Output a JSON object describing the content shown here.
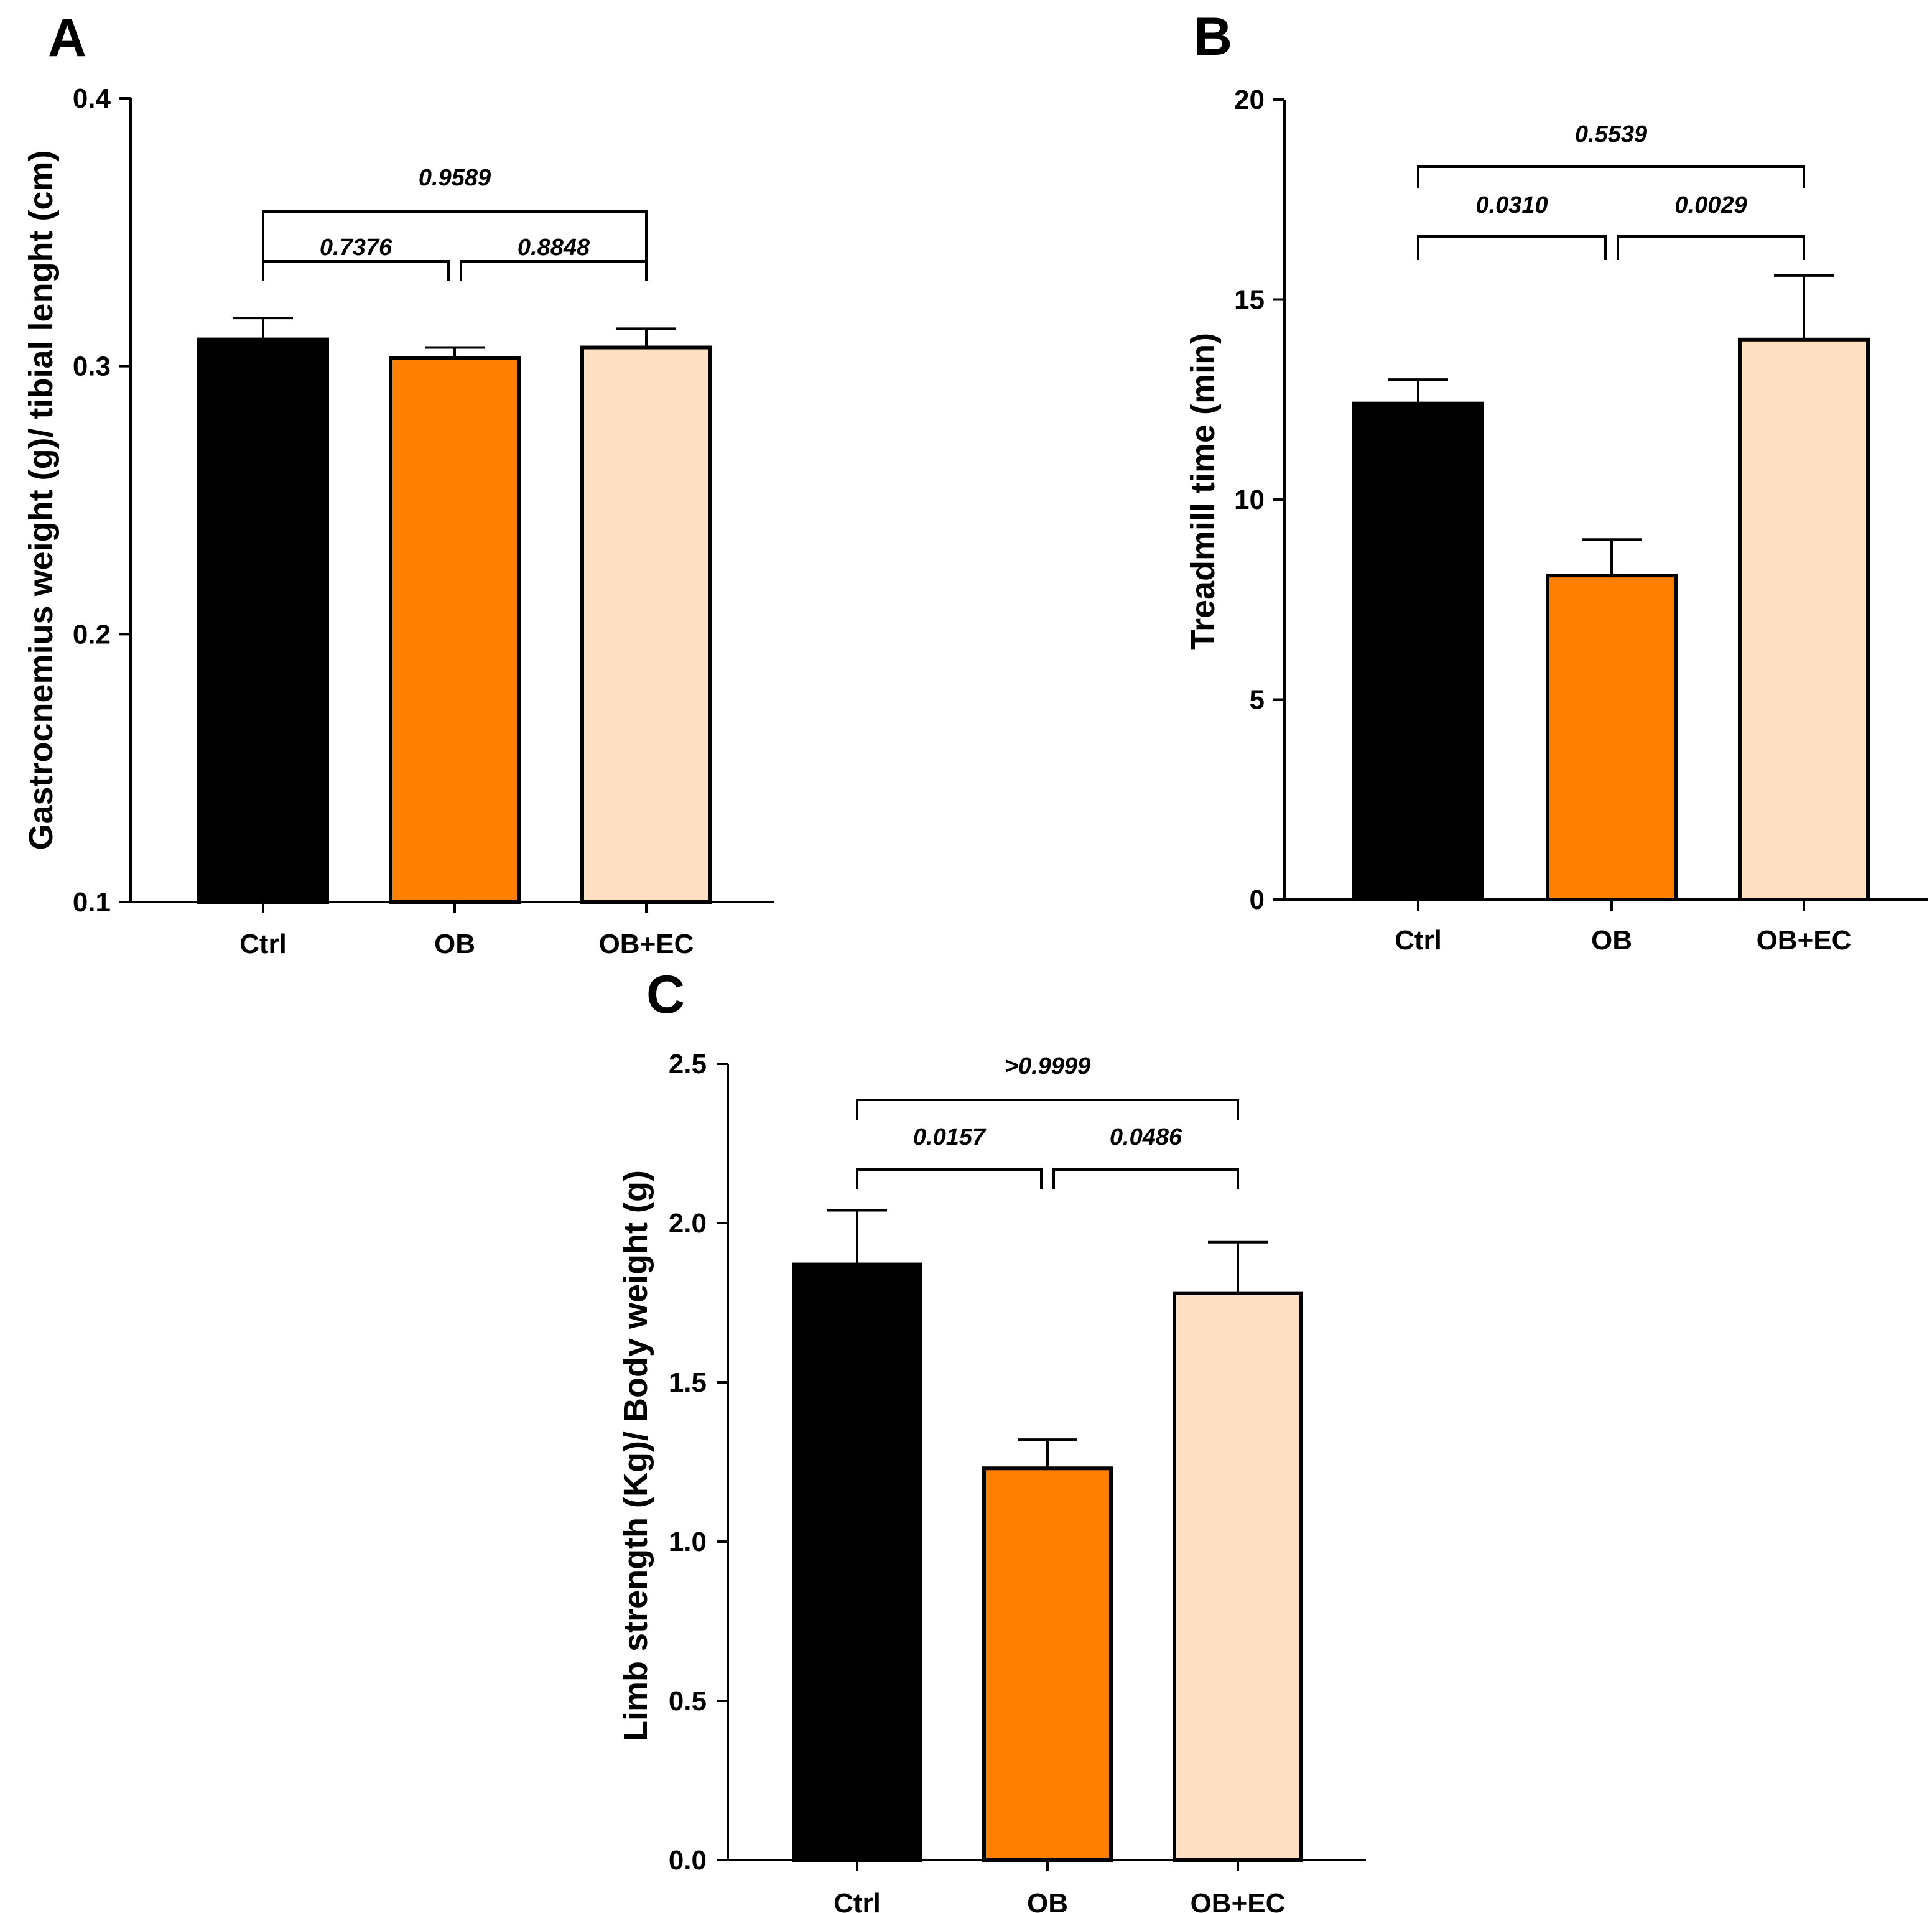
{
  "colors": {
    "Ctrl": "#000000",
    "OB": "#FF7F00",
    "OB+EC": "#FFE0C2",
    "axis": "#000000"
  },
  "chart_data": [
    {
      "panel": "A",
      "type": "bar",
      "categories": [
        "Ctrl",
        "OB",
        "OB+EC"
      ],
      "values": [
        0.31,
        0.303,
        0.307
      ],
      "errors": [
        0.008,
        0.004,
        0.007
      ],
      "ylabel": "Gastrocnemius weight (g)/ tibial lenght (cm)",
      "ylim": [
        0.1,
        0.4
      ],
      "yticks": [
        0.1,
        0.2,
        0.3,
        0.4
      ],
      "ytick_labels": [
        "0.1",
        "0.2",
        "0.3",
        "0.4"
      ],
      "comparisons": [
        {
          "from": 0,
          "to": 1,
          "label": "0.7376"
        },
        {
          "from": 1,
          "to": 2,
          "label": "0.8848"
        },
        {
          "from": 0,
          "to": 2,
          "label": "0.9589"
        }
      ]
    },
    {
      "panel": "B",
      "type": "bar",
      "categories": [
        "Ctrl",
        "OB",
        "OB+EC"
      ],
      "values": [
        12.4,
        8.1,
        14.0
      ],
      "errors": [
        0.6,
        0.9,
        1.6
      ],
      "ylabel": "Treadmill time (min)",
      "ylim": [
        0,
        20
      ],
      "yticks": [
        0,
        5,
        10,
        15,
        20
      ],
      "ytick_labels": [
        "0",
        "5",
        "10",
        "15",
        "20"
      ],
      "comparisons": [
        {
          "from": 0,
          "to": 1,
          "label": "0.0310"
        },
        {
          "from": 1,
          "to": 2,
          "label": "0.0029"
        },
        {
          "from": 0,
          "to": 2,
          "label": "0.5539"
        }
      ]
    },
    {
      "panel": "C",
      "type": "bar",
      "categories": [
        "Ctrl",
        "OB",
        "OB+EC"
      ],
      "values": [
        1.87,
        1.23,
        1.78
      ],
      "errors": [
        0.17,
        0.09,
        0.16
      ],
      "ylabel": "Limb strength (Kg)/ Body weight (g)",
      "ylim": [
        0,
        2.5
      ],
      "yticks": [
        0,
        0.5,
        1.0,
        1.5,
        2.0,
        2.5
      ],
      "ytick_labels": [
        "0.0",
        "0.5",
        "1.0",
        "1.5",
        "2.0",
        "2.5"
      ],
      "comparisons": [
        {
          "from": 0,
          "to": 1,
          "label": "0.0157"
        },
        {
          "from": 1,
          "to": 2,
          "label": "0.0486"
        },
        {
          "from": 0,
          "to": 2,
          "label": ">0.9999"
        }
      ]
    }
  ]
}
